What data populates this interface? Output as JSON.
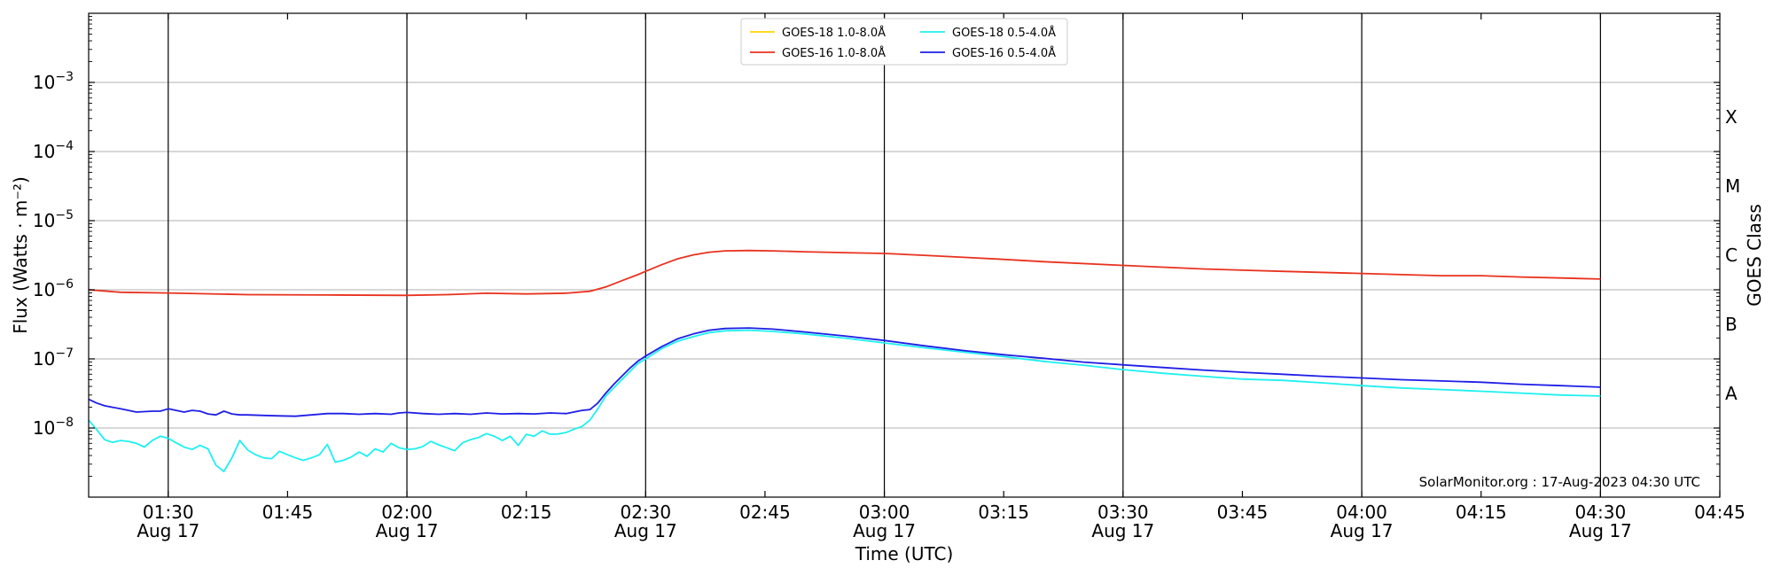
{
  "chart_data": {
    "type": "line",
    "x_domain_minutes": [
      80,
      285
    ],
    "y_scale": "log",
    "ylim": [
      1e-09,
      0.01
    ],
    "xlabel": "Time (UTC)",
    "ylabel": "Flux (Watts · m⁻²)",
    "right_label": "GOES Class",
    "credit": "SolarMonitor.org : 17-Aug-2023 04:30 UTC",
    "legend_position": "upper center",
    "grid": "horizontal at decades, vertical at 30-minute marks",
    "x_ticks": [
      {
        "t": 90,
        "line1": "01:30",
        "line2": "Aug 17"
      },
      {
        "t": 105,
        "line1": "01:45",
        "line2": ""
      },
      {
        "t": 120,
        "line1": "02:00",
        "line2": "Aug 17"
      },
      {
        "t": 135,
        "line1": "02:15",
        "line2": ""
      },
      {
        "t": 150,
        "line1": "02:30",
        "line2": "Aug 17"
      },
      {
        "t": 165,
        "line1": "02:45",
        "line2": ""
      },
      {
        "t": 180,
        "line1": "03:00",
        "line2": "Aug 17"
      },
      {
        "t": 195,
        "line1": "03:15",
        "line2": ""
      },
      {
        "t": 210,
        "line1": "03:30",
        "line2": "Aug 17"
      },
      {
        "t": 225,
        "line1": "03:45",
        "line2": ""
      },
      {
        "t": 240,
        "line1": "04:00",
        "line2": "Aug 17"
      },
      {
        "t": 255,
        "line1": "04:15",
        "line2": ""
      },
      {
        "t": 270,
        "line1": "04:30",
        "line2": "Aug 17"
      },
      {
        "t": 285,
        "line1": "04:45",
        "line2": ""
      }
    ],
    "y_ticks": [
      {
        "exp": -8,
        "base": "10",
        "sup": "−8"
      },
      {
        "exp": -7,
        "base": "10",
        "sup": "−7"
      },
      {
        "exp": -6,
        "base": "10",
        "sup": "−6"
      },
      {
        "exp": -5,
        "base": "10",
        "sup": "−5"
      },
      {
        "exp": -4,
        "base": "10",
        "sup": "−4"
      },
      {
        "exp": -3,
        "base": "10",
        "sup": "−3"
      }
    ],
    "goes_classes": [
      {
        "label": "A",
        "exp": -7.5
      },
      {
        "label": "B",
        "exp": -6.5
      },
      {
        "label": "C",
        "exp": -5.5
      },
      {
        "label": "M",
        "exp": -4.5
      },
      {
        "label": "X",
        "exp": -3.5
      }
    ],
    "series": [
      {
        "name": "GOES-18 1.0-8.0Å",
        "color": "#ffd700",
        "x": [],
        "y": []
      },
      {
        "name": "GOES-16 1.0-8.0Å",
        "color": "#e8321e",
        "x": [
          80,
          84,
          90,
          100,
          110,
          120,
          125,
          130,
          135,
          140,
          143,
          145,
          147,
          149,
          150,
          152,
          154,
          156,
          158,
          160,
          163,
          166,
          170,
          175,
          180,
          185,
          190,
          195,
          200,
          210,
          220,
          230,
          240,
          250,
          255,
          260,
          265,
          270
        ],
        "y": [
          1e-06,
          9.2e-07,
          9e-07,
          8.5e-07,
          8.4e-07,
          8.3e-07,
          8.5e-07,
          8.9e-07,
          8.7e-07,
          8.9e-07,
          9.5e-07,
          1.1e-06,
          1.35e-06,
          1.65e-06,
          1.85e-06,
          2.3e-06,
          2.8e-06,
          3.2e-06,
          3.5e-06,
          3.65e-06,
          3.7e-06,
          3.65e-06,
          3.55e-06,
          3.45e-06,
          3.35e-06,
          3.15e-06,
          2.95e-06,
          2.75e-06,
          2.55e-06,
          2.25e-06,
          2e-06,
          1.85e-06,
          1.72e-06,
          1.6e-06,
          1.6e-06,
          1.53e-06,
          1.48e-06,
          1.43e-06
        ]
      },
      {
        "name": "GOES-18 0.5-4.0Å",
        "color": "#1ef0f0",
        "x": [
          80,
          81,
          82,
          83,
          84,
          85,
          86,
          87,
          88,
          89,
          90,
          91,
          92,
          93,
          94,
          95,
          96,
          97,
          98,
          99,
          100,
          101,
          102,
          103,
          104,
          105,
          106,
          107,
          108,
          109,
          110,
          111,
          112,
          113,
          114,
          115,
          116,
          117,
          118,
          119,
          120,
          121,
          122,
          123,
          124,
          125,
          126,
          127,
          128,
          129,
          130,
          131,
          132,
          133,
          134,
          135,
          136,
          137,
          138,
          139,
          140,
          141,
          142,
          143,
          144,
          145,
          146,
          147,
          148,
          149,
          150,
          152,
          154,
          156,
          158,
          160,
          163,
          166,
          170,
          175,
          180,
          185,
          190,
          195,
          200,
          205,
          210,
          215,
          220,
          225,
          230,
          235,
          240,
          245,
          250,
          255,
          260,
          265,
          270
        ],
        "y": [
          1.3e-08,
          9.5e-09,
          6.8e-09,
          6.2e-09,
          6.6e-09,
          6.4e-09,
          6e-09,
          5.3e-09,
          6.6e-09,
          7.6e-09,
          7.1e-09,
          6.1e-09,
          5.3e-09,
          4.9e-09,
          5.6e-09,
          5e-09,
          2.9e-09,
          2.35e-09,
          3.7e-09,
          6.6e-09,
          4.8e-09,
          4.1e-09,
          3.7e-09,
          3.6e-09,
          4.6e-09,
          4.1e-09,
          3.7e-09,
          3.4e-09,
          3.7e-09,
          4.1e-09,
          5.8e-09,
          3.2e-09,
          3.4e-09,
          3.8e-09,
          4.5e-09,
          3.9e-09,
          5e-09,
          4.5e-09,
          6e-09,
          5.2e-09,
          4.9e-09,
          5e-09,
          5.4e-09,
          6.4e-09,
          5.7e-09,
          5.2e-09,
          4.7e-09,
          6.1e-09,
          6.8e-09,
          7.3e-09,
          8.3e-09,
          7.6e-09,
          6.6e-09,
          7.6e-09,
          5.6e-09,
          8.1e-09,
          7.6e-09,
          9.1e-09,
          8.1e-09,
          8.2e-09,
          8.6e-09,
          9.6e-09,
          1.05e-08,
          1.3e-08,
          1.9e-08,
          2.9e-08,
          3.8e-08,
          5e-08,
          6.5e-08,
          8.5e-08,
          1e-07,
          1.4e-07,
          1.8e-07,
          2.1e-07,
          2.4e-07,
          2.55e-07,
          2.6e-07,
          2.5e-07,
          2.3e-07,
          2e-07,
          1.7e-07,
          1.45e-07,
          1.25e-07,
          1.08e-07,
          9.2e-08,
          8.1e-08,
          7e-08,
          6.2e-08,
          5.6e-08,
          5.1e-08,
          4.9e-08,
          4.5e-08,
          4.1e-08,
          3.8e-08,
          3.6e-08,
          3.4e-08,
          3.2e-08,
          3e-08,
          2.9e-08
        ]
      },
      {
        "name": "GOES-16 0.5-4.0Å",
        "color": "#1e1ee6",
        "x": [
          80,
          81,
          82,
          84,
          86,
          88,
          89,
          90,
          91,
          92,
          93,
          94,
          95,
          96,
          97,
          98,
          99,
          100,
          102,
          104,
          106,
          108,
          110,
          112,
          114,
          116,
          118,
          119,
          120,
          122,
          124,
          126,
          128,
          130,
          132,
          134,
          136,
          138,
          140,
          142,
          143,
          144,
          145,
          146,
          147,
          148,
          149,
          150,
          152,
          154,
          156,
          158,
          160,
          163,
          166,
          170,
          175,
          180,
          185,
          190,
          195,
          200,
          205,
          210,
          215,
          220,
          225,
          230,
          235,
          240,
          245,
          250,
          255,
          260,
          265,
          270
        ],
        "y": [
          2.6e-08,
          2.3e-08,
          2.1e-08,
          1.9e-08,
          1.7e-08,
          1.75e-08,
          1.75e-08,
          1.9e-08,
          1.8e-08,
          1.7e-08,
          1.8e-08,
          1.75e-08,
          1.6e-08,
          1.55e-08,
          1.75e-08,
          1.6e-08,
          1.55e-08,
          1.55e-08,
          1.52e-08,
          1.5e-08,
          1.48e-08,
          1.55e-08,
          1.62e-08,
          1.62e-08,
          1.58e-08,
          1.62e-08,
          1.58e-08,
          1.65e-08,
          1.68e-08,
          1.62e-08,
          1.58e-08,
          1.62e-08,
          1.58e-08,
          1.65e-08,
          1.6e-08,
          1.62e-08,
          1.6e-08,
          1.65e-08,
          1.62e-08,
          1.8e-08,
          1.85e-08,
          2.3e-08,
          3.2e-08,
          4.3e-08,
          5.6e-08,
          7.3e-08,
          9.2e-08,
          1.1e-07,
          1.5e-07,
          1.95e-07,
          2.3e-07,
          2.6e-07,
          2.75e-07,
          2.8e-07,
          2.7e-07,
          2.45e-07,
          2.15e-07,
          1.85e-07,
          1.55e-07,
          1.32e-07,
          1.15e-07,
          1.02e-07,
          9e-08,
          8.2e-08,
          7.5e-08,
          6.9e-08,
          6.4e-08,
          6e-08,
          5.6e-08,
          5.3e-08,
          5e-08,
          4.8e-08,
          4.6e-08,
          4.3e-08,
          4.1e-08,
          3.9e-08
        ]
      }
    ]
  }
}
